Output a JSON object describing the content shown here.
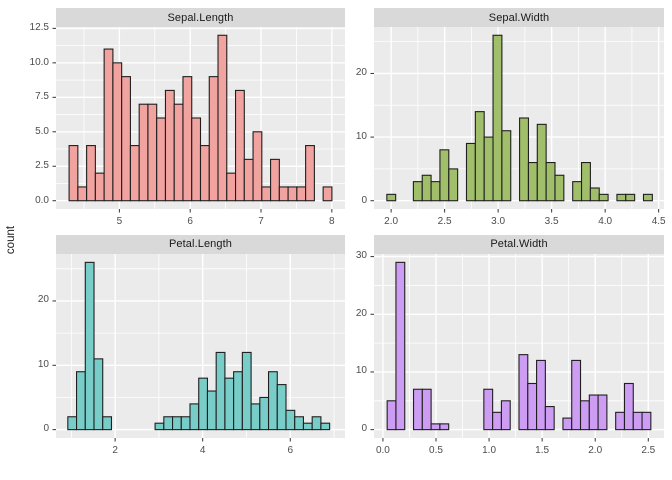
{
  "figure": {
    "y_axis_title": "count",
    "panel_background": "#EBEBEB",
    "strip_background": "#D9D9D9",
    "gridline_color": "#FFFFFF",
    "bar_outline_color": "#1F1F1F",
    "tick_mark_color": "#333333",
    "axis_text_color": "#4D4D4D"
  },
  "chart_data": [
    {
      "type": "bar",
      "subtype": "histogram",
      "title": "Sepal.Length",
      "fill": "#F1A3A0",
      "bins": {
        "start": 4.29,
        "width": 0.1237,
        "counts": [
          4,
          1,
          4,
          2,
          11,
          10,
          9,
          4,
          7,
          7,
          6,
          8,
          7,
          9,
          6,
          4,
          9,
          12,
          2,
          8,
          3,
          5,
          1,
          3,
          1,
          1,
          1,
          4,
          0,
          1
        ]
      },
      "x_domain": [
        4.105,
        8.186
      ],
      "y_domain": [
        -0.6,
        12.6
      ],
      "x_ticks": {
        "values": [
          5,
          6,
          7,
          8
        ],
        "labels": [
          "5",
          "6",
          "7",
          "8"
        ]
      },
      "y_ticks": {
        "values": [
          0,
          2.5,
          5,
          7.5,
          10,
          12.5
        ],
        "labels": [
          "0.0",
          "2.5",
          "5.0",
          "7.5",
          "10.0",
          "12.5"
        ]
      },
      "x_minor": [
        4.5,
        5.5,
        6.5,
        7.5
      ],
      "y_minor": [
        1.25,
        3.75,
        6.25,
        8.75,
        11.25
      ]
    },
    {
      "type": "bar",
      "subtype": "histogram",
      "title": "Sepal.Width",
      "fill": "#A1BF6B",
      "bins": {
        "start": 1.96,
        "width": 0.0827,
        "counts": [
          1,
          0,
          0,
          3,
          4,
          3,
          8,
          5,
          0,
          9,
          14,
          10,
          26,
          11,
          0,
          13,
          6,
          12,
          6,
          4,
          0,
          3,
          6,
          2,
          1,
          0,
          1,
          1,
          0,
          1
        ]
      },
      "x_domain": [
        1.84,
        4.55
      ],
      "y_domain": [
        -1.3,
        27.3
      ],
      "x_ticks": {
        "values": [
          2.0,
          2.5,
          3.0,
          3.5,
          4.0,
          4.5
        ],
        "labels": [
          "2.0",
          "2.5",
          "3.0",
          "3.5",
          "4.0",
          "4.5"
        ]
      },
      "y_ticks": {
        "values": [
          0,
          10,
          20
        ],
        "labels": [
          "0",
          "10",
          "20"
        ]
      },
      "x_minor": [
        2.25,
        2.75,
        3.25,
        3.75,
        4.25
      ],
      "y_minor": [
        5,
        15,
        25
      ]
    },
    {
      "type": "bar",
      "subtype": "histogram",
      "title": "Petal.Length",
      "fill": "#78CDC9",
      "bins": {
        "start": 0.92,
        "width": 0.1993,
        "counts": [
          2,
          9,
          26,
          11,
          2,
          0,
          0,
          0,
          0,
          0,
          1,
          2,
          2,
          2,
          4,
          8,
          6,
          12,
          8,
          9,
          12,
          4,
          5,
          9,
          7,
          3,
          2,
          1,
          2,
          1
        ]
      },
      "x_domain": [
        0.65,
        7.25
      ],
      "y_domain": [
        -1.3,
        27.3
      ],
      "x_ticks": {
        "values": [
          2,
          4,
          6
        ],
        "labels": [
          "2",
          "4",
          "6"
        ]
      },
      "y_ticks": {
        "values": [
          0,
          10,
          20
        ],
        "labels": [
          "0",
          "10",
          "20"
        ]
      },
      "x_minor": [
        1,
        3,
        5,
        7
      ],
      "y_minor": [
        5,
        15,
        25
      ]
    },
    {
      "type": "bar",
      "subtype": "histogram",
      "title": "Petal.Width",
      "fill": "#CC9DF2",
      "bins": {
        "start": 0.04,
        "width": 0.0828,
        "counts": [
          5,
          29,
          0,
          7,
          7,
          1,
          1,
          0,
          0,
          0,
          0,
          7,
          3,
          5,
          0,
          13,
          8,
          12,
          4,
          0,
          2,
          12,
          5,
          6,
          6,
          0,
          3,
          8,
          3,
          3
        ]
      },
      "x_domain": [
        -0.084,
        2.648
      ],
      "y_domain": [
        -1.45,
        30.45
      ],
      "x_ticks": {
        "values": [
          0,
          0.5,
          1,
          1.5,
          2,
          2.5
        ],
        "labels": [
          "0.0",
          "0.5",
          "1.0",
          "1.5",
          "2.0",
          "2.5"
        ]
      },
      "y_ticks": {
        "values": [
          0,
          10,
          20,
          30
        ],
        "labels": [
          "0",
          "10",
          "20",
          "30"
        ]
      },
      "x_minor": [
        0.25,
        0.75,
        1.25,
        1.75,
        2.25
      ],
      "y_minor": [
        5,
        15,
        25
      ]
    }
  ]
}
